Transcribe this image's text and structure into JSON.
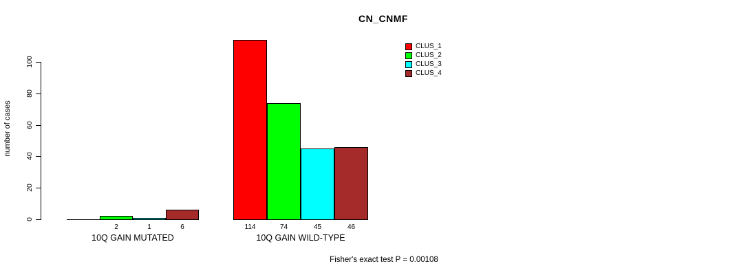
{
  "chart_data": {
    "type": "bar",
    "title": "CN_CNMF",
    "ylabel": "number of cases",
    "xlabel": "",
    "categories": [
      "10Q GAIN MUTATED",
      "10Q GAIN WILD-TYPE"
    ],
    "series": [
      {
        "name": "CLUS_1",
        "color": "#ff0000",
        "values": [
          0,
          114
        ]
      },
      {
        "name": "CLUS_2",
        "color": "#00ff00",
        "values": [
          2,
          74
        ]
      },
      {
        "name": "CLUS_3",
        "color": "#00ffff",
        "values": [
          1,
          45
        ]
      },
      {
        "name": "CLUS_4",
        "color": "#a52a2a",
        "values": [
          6,
          46
        ]
      }
    ],
    "bar_value_labels": [
      [
        "",
        "2",
        "1",
        "6"
      ],
      [
        "114",
        "74",
        "45",
        "46"
      ]
    ],
    "yticks": [
      0,
      20,
      40,
      60,
      80,
      100
    ],
    "ytick_labels": [
      "0",
      "20",
      "40",
      "60",
      "80",
      "100"
    ],
    "ylim": [
      0,
      114
    ],
    "grid": false,
    "legend_position": "top-right",
    "bar_border_color": "#000000",
    "footnote": "Fisher's exact test P = 0.00108"
  }
}
